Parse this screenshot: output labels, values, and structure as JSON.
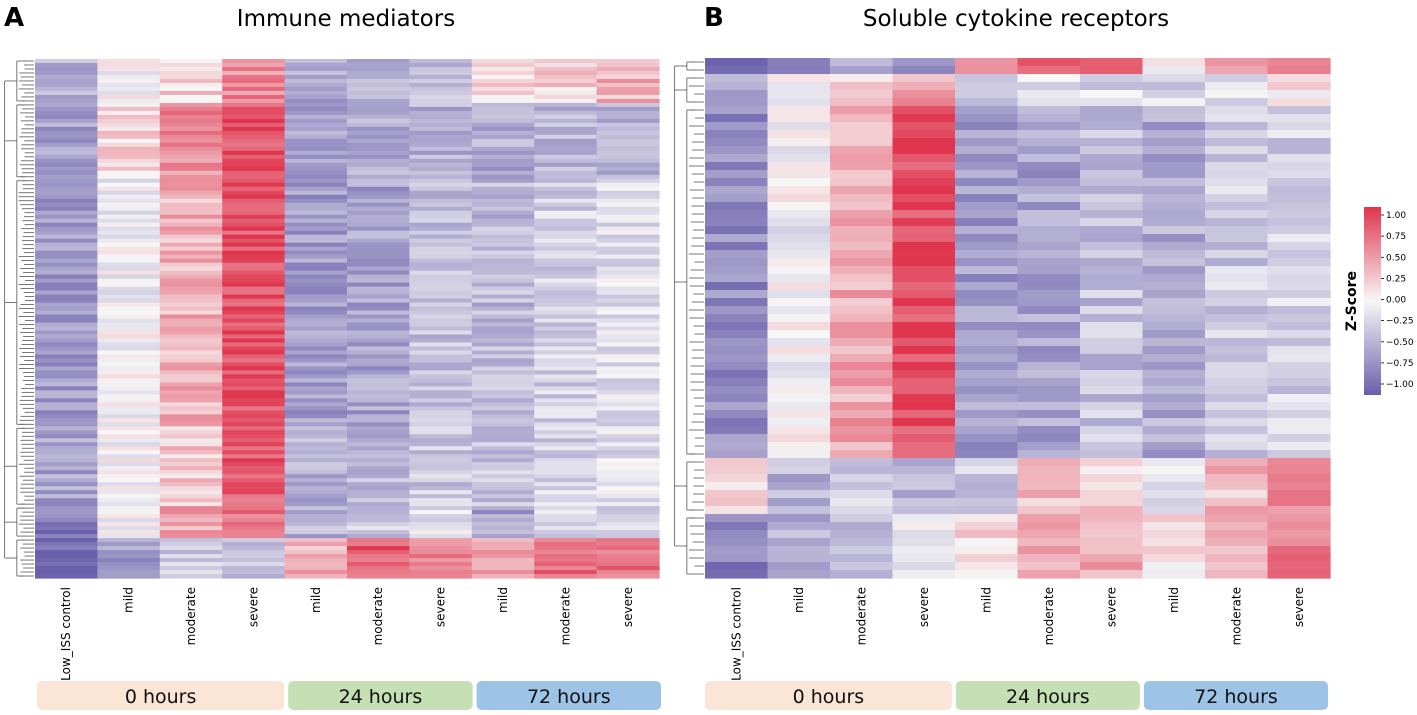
{
  "chart_data": {
    "type": "heatmap",
    "panels": [
      {
        "letter": "A",
        "title": "Immune mediators",
        "columns": [
          "Low_ISS control",
          "mild",
          "moderate",
          "severe",
          "mild",
          "moderate",
          "severe",
          "mild",
          "moderate",
          "severe"
        ],
        "groups": [
          {
            "label": "0 hours",
            "span": 4,
            "color": "#fbe5d6"
          },
          {
            "label": "24 hours",
            "span": 3,
            "color": "#c5e0b4"
          },
          {
            "label": "72 hours",
            "span": 3,
            "color": "#9dc3e6"
          }
        ],
        "row_count": 130,
        "row_blocks": [
          {
            "rows": 11,
            "values": [
              -0.45,
              -0.05,
              0.2,
              0.55,
              -0.55,
              -0.45,
              -0.35,
              0.15,
              0.2,
              0.35
            ]
          },
          {
            "rows": 19,
            "values": [
              -0.55,
              0.15,
              0.55,
              0.85,
              -0.6,
              -0.5,
              -0.45,
              -0.5,
              -0.4,
              -0.4
            ]
          },
          {
            "rows": 62,
            "values": [
              -0.6,
              -0.05,
              0.35,
              0.85,
              -0.6,
              -0.55,
              -0.35,
              -0.4,
              -0.25,
              -0.15
            ]
          },
          {
            "rows": 20,
            "values": [
              -0.55,
              0.0,
              0.25,
              0.8,
              -0.45,
              -0.4,
              -0.3,
              -0.35,
              -0.25,
              -0.15
            ]
          },
          {
            "rows": 8,
            "values": [
              -0.8,
              -0.1,
              0.4,
              0.7,
              -0.45,
              -0.3,
              -0.1,
              -0.55,
              -0.25,
              -0.2
            ]
          },
          {
            "rows": 10,
            "values": [
              -0.9,
              -0.6,
              -0.3,
              -0.35,
              0.35,
              0.8,
              0.55,
              0.45,
              0.75,
              0.7
            ]
          }
        ]
      },
      {
        "letter": "B",
        "title": "Soluble cytokine receptors",
        "columns": [
          "Low_ISS control",
          "mild",
          "moderate",
          "severe",
          "mild",
          "moderate",
          "severe",
          "mild",
          "moderate",
          "severe"
        ],
        "groups": [
          {
            "label": "0 hours",
            "span": 4,
            "color": "#fbe5d6"
          },
          {
            "label": "24 hours",
            "span": 3,
            "color": "#c5e0b4"
          },
          {
            "label": "72 hours",
            "span": 3,
            "color": "#9dc3e6"
          }
        ],
        "row_count": 65,
        "row_blocks": [
          {
            "rows": 2,
            "values": [
              -0.95,
              -0.6,
              -0.55,
              -0.8,
              0.65,
              0.75,
              0.95,
              0.1,
              0.3,
              0.6
            ]
          },
          {
            "rows": 4,
            "values": [
              -0.55,
              -0.1,
              0.15,
              0.4,
              -0.3,
              -0.1,
              -0.2,
              -0.2,
              -0.2,
              0.05
            ]
          },
          {
            "rows": 44,
            "values": [
              -0.7,
              -0.05,
              0.4,
              0.9,
              -0.6,
              -0.55,
              -0.35,
              -0.5,
              -0.3,
              -0.25
            ]
          },
          {
            "rows": 7,
            "values": [
              0.2,
              -0.45,
              -0.3,
              -0.45,
              -0.3,
              0.35,
              0.2,
              -0.2,
              0.3,
              0.5
            ]
          },
          {
            "rows": 8,
            "values": [
              -0.75,
              -0.5,
              -0.3,
              -0.1,
              0.15,
              0.3,
              0.45,
              0.1,
              0.35,
              0.6
            ]
          }
        ]
      }
    ],
    "colorbar": {
      "label": "Z-Score",
      "min": -1.0,
      "max": 1.0,
      "ticks": [
        "1.00",
        "0.75",
        "0.50",
        "0.25",
        "0.00",
        "−0.25",
        "−0.50",
        "−0.75",
        "−1.00"
      ],
      "colors": {
        "low": "#6a5fab",
        "mid": "#f7f7f7",
        "high": "#e0354e"
      }
    }
  }
}
